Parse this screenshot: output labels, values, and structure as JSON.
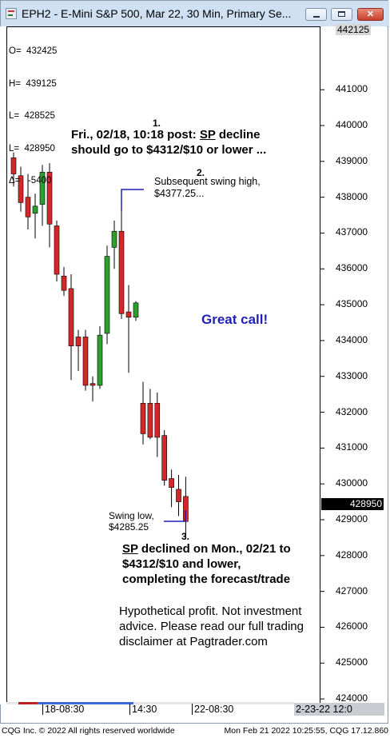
{
  "window": {
    "title": "EPH2 - E-Mini S&P 500, Mar 22, 30 Min, Primary Se..."
  },
  "ohlc": {
    "open": "O=  432425",
    "high": "H=  439125",
    "low": "L=  428525",
    "last": "L=  428950",
    "delta": "Δ=   -5400"
  },
  "annotations": {
    "ann1_num": "1.",
    "ann1_text": "Fri., 02/18, 10:18 post: SP decline should go to $4312/$10 or lower ...",
    "ann2_num": "2.",
    "ann2_text": "Subsequent swing high, $4377.25...",
    "great_call": "Great call!",
    "swing_low": "Swing low, $4285.25",
    "ann3_num": "3.",
    "ann3_text": "SP declined on Mon., 02/21 to $4312/$10 and lower, completing the forecast/trade",
    "disclaimer": "Hypothetical profit. Not investment advice. Please read our full trading disclaimer at Pagtrader.com"
  },
  "price_tag": "428950",
  "top_price_tag": "442125",
  "x_axis": {
    "labels": [
      "18-08:30",
      "14:30",
      "22-08:30"
    ],
    "date_box": "2-23-22  12:0"
  },
  "status": {
    "left": "CQG Inc. © 2022 All rights reserved worldwide",
    "right": "Mon Feb 21 2022 10:25:55, CQG 17.12.860"
  },
  "colors": {
    "up": "#2ca02c",
    "down": "#d62728",
    "great_call": "#1f1fb8"
  },
  "chart_data": {
    "type": "candlestick",
    "title": "EPH2 - E-Mini S&P 500, Mar 22, 30 Min",
    "ylim": [
      4234,
      4427
    ],
    "y_ticks": [
      {
        "value": 4410,
        "label": "441000"
      },
      {
        "value": 4400,
        "label": "440000"
      },
      {
        "value": 4390,
        "label": "439000"
      },
      {
        "value": 4380,
        "label": "438000"
      },
      {
        "value": 4370,
        "label": "437000"
      },
      {
        "value": 4360,
        "label": "436000"
      },
      {
        "value": 4350,
        "label": "435000"
      },
      {
        "value": 4340,
        "label": "434000"
      },
      {
        "value": 4330,
        "label": "433000"
      },
      {
        "value": 4320,
        "label": "432000"
      },
      {
        "value": 4310,
        "label": "431000"
      },
      {
        "value": 4300,
        "label": "430000"
      },
      {
        "value": 4290,
        "label": "429000"
      },
      {
        "value": 4280,
        "label": "428000"
      },
      {
        "value": 4270,
        "label": "427000"
      },
      {
        "value": 4260,
        "label": "426000"
      },
      {
        "value": 4250,
        "label": "425000"
      },
      {
        "value": 4240,
        "label": "424000"
      }
    ],
    "candles": [
      {
        "o": 4391.0,
        "h": 4392.5,
        "l": 4383.0,
        "c": 4386.5
      },
      {
        "o": 4386.0,
        "h": 4388.5,
        "l": 4376.0,
        "c": 4378.5
      },
      {
        "o": 4380.0,
        "h": 4386.5,
        "l": 4371.0,
        "c": 4374.5
      },
      {
        "o": 4375.5,
        "h": 4381.0,
        "l": 4368.5,
        "c": 4377.5
      },
      {
        "o": 4378.0,
        "h": 4389.0,
        "l": 4372.0,
        "c": 4387.0
      },
      {
        "o": 4387.0,
        "h": 4389.5,
        "l": 4366.0,
        "c": 4372.5
      },
      {
        "o": 4372.0,
        "h": 4373.5,
        "l": 4356.5,
        "c": 4358.5
      },
      {
        "o": 4358.0,
        "h": 4360.5,
        "l": 4352.5,
        "c": 4354.0
      },
      {
        "o": 4354.5,
        "h": 4358.5,
        "l": 4329.0,
        "c": 4338.5
      },
      {
        "o": 4341.0,
        "h": 4343.0,
        "l": 4331.5,
        "c": 4338.5
      },
      {
        "o": 4341.0,
        "h": 4343.0,
        "l": 4326.0,
        "c": 4327.5
      },
      {
        "o": 4328.0,
        "h": 4330.0,
        "l": 4323.0,
        "c": 4327.5
      },
      {
        "o": 4327.5,
        "h": 4344.0,
        "l": 4326.5,
        "c": 4341.5
      },
      {
        "o": 4342.0,
        "h": 4366.5,
        "l": 4339.0,
        "c": 4363.5
      },
      {
        "o": 4366.0,
        "h": 4373.5,
        "l": 4360.0,
        "c": 4370.5
      },
      {
        "o": 4370.5,
        "h": 4376.5,
        "l": 4346.0,
        "c": 4347.5
      },
      {
        "o": 4348.0,
        "h": 4355.5,
        "l": 4331.0,
        "c": 4346.5
      },
      {
        "o": 4346.5,
        "h": 4351.0,
        "l": 4345.5,
        "c": 4350.5
      },
      {
        "o": 4322.5,
        "h": 4328.5,
        "l": 4311.0,
        "c": 4314.0
      },
      {
        "o": 4322.5,
        "h": 4326.5,
        "l": 4312.5,
        "c": 4313.0
      },
      {
        "o": 4322.5,
        "h": 4325.5,
        "l": 4307.5,
        "c": 4313.0
      },
      {
        "o": 4313.5,
        "h": 4315.0,
        "l": 4299.5,
        "c": 4301.0
      },
      {
        "o": 4301.5,
        "h": 4304.0,
        "l": 4293.5,
        "c": 4299.0
      },
      {
        "o": 4298.5,
        "h": 4302.5,
        "l": 4291.0,
        "c": 4295.0
      },
      {
        "o": 4296.5,
        "h": 4302.0,
        "l": 4285.25,
        "c": 4289.5
      }
    ]
  }
}
